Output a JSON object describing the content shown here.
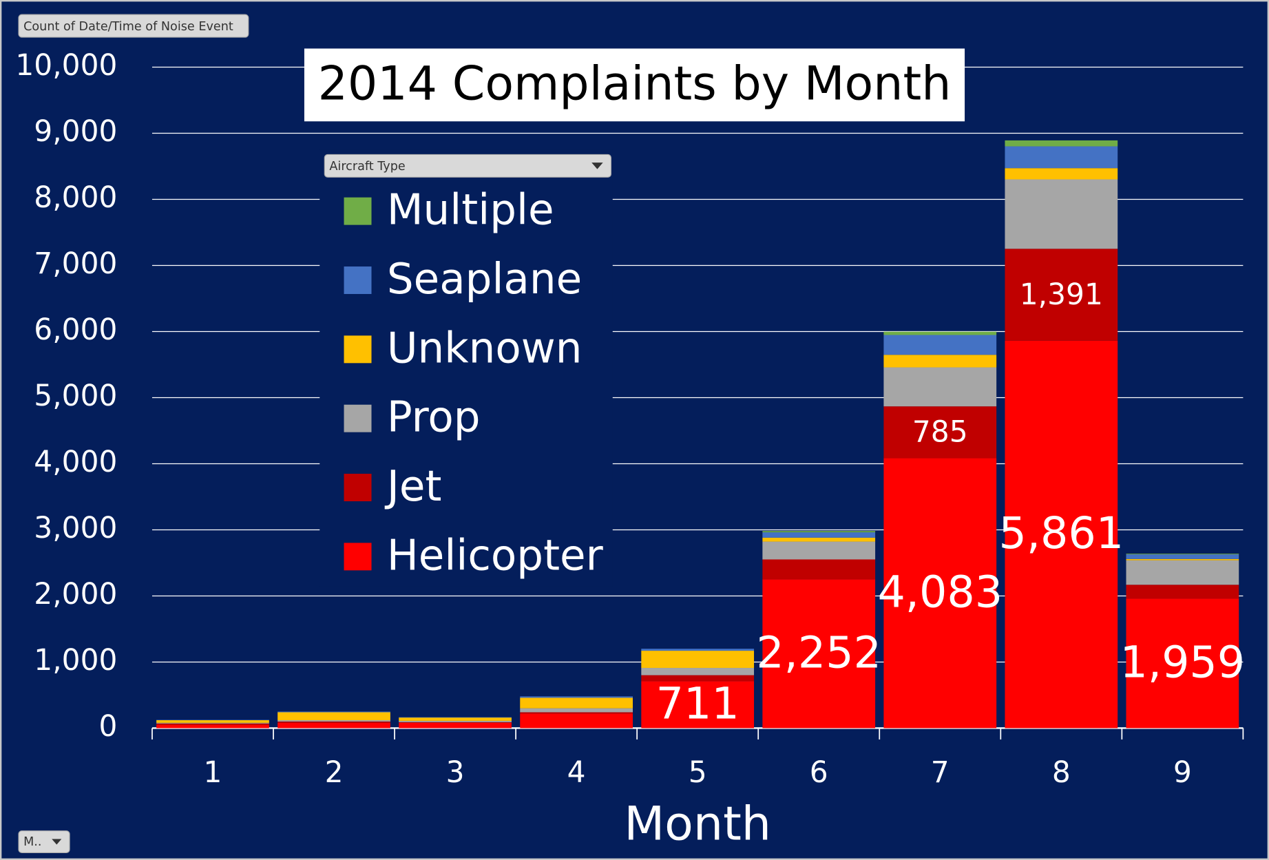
{
  "chart_data": {
    "type": "bar",
    "stacked": true,
    "title": "2014 Complaints by Month",
    "x_label": "Month",
    "value_field_button": "Count of Date/Time of Noise Event",
    "legend_title": "Aircraft Type",
    "axis_field_button": "M..",
    "categories": [
      "1",
      "2",
      "3",
      "4",
      "5",
      "6",
      "7",
      "8",
      "9"
    ],
    "series": [
      {
        "name": "Helicopter",
        "color": "#ff0000",
        "values": [
          50,
          80,
          80,
          220,
          711,
          2252,
          4083,
          5861,
          1959
        ],
        "value_labels": [
          null,
          null,
          null,
          null,
          "711",
          "2,252",
          "4,083",
          "5,861",
          "1,959"
        ]
      },
      {
        "name": "Jet",
        "color": "#c00000",
        "values": [
          20,
          20,
          10,
          20,
          90,
          300,
          785,
          1391,
          210
        ],
        "value_labels": [
          null,
          null,
          null,
          null,
          null,
          null,
          "785",
          "1,391",
          null
        ]
      },
      {
        "name": "Prop",
        "color": "#a6a6a6",
        "values": [
          10,
          20,
          20,
          60,
          110,
          270,
          590,
          1050,
          370
        ]
      },
      {
        "name": "Unknown",
        "color": "#ffc000",
        "values": [
          40,
          120,
          50,
          160,
          260,
          60,
          190,
          170,
          20
        ]
      },
      {
        "name": "Seaplane",
        "color": "#4472c4",
        "values": [
          5,
          10,
          5,
          20,
          30,
          80,
          300,
          330,
          70
        ]
      },
      {
        "name": "Multiple",
        "color": "#70ad47",
        "values": [
          0,
          0,
          0,
          0,
          0,
          20,
          50,
          90,
          10
        ]
      }
    ],
    "ylim": [
      0,
      10000
    ],
    "yticks": [
      0,
      {
        "value": 1000,
        "label": "1,000"
      },
      {
        "value": 2000,
        "label": "2,000"
      },
      {
        "value": 3000,
        "label": "3,000"
      },
      {
        "value": 4000,
        "label": "4,000"
      },
      {
        "value": 5000,
        "label": "5,000"
      },
      {
        "value": 6000,
        "label": "6,000"
      },
      {
        "value": 7000,
        "label": "7,000"
      },
      {
        "value": 8000,
        "label": "8,000"
      },
      {
        "value": 9000,
        "label": "9,000"
      },
      {
        "value": 10000,
        "label": "10,000"
      }
    ],
    "grid": true
  }
}
